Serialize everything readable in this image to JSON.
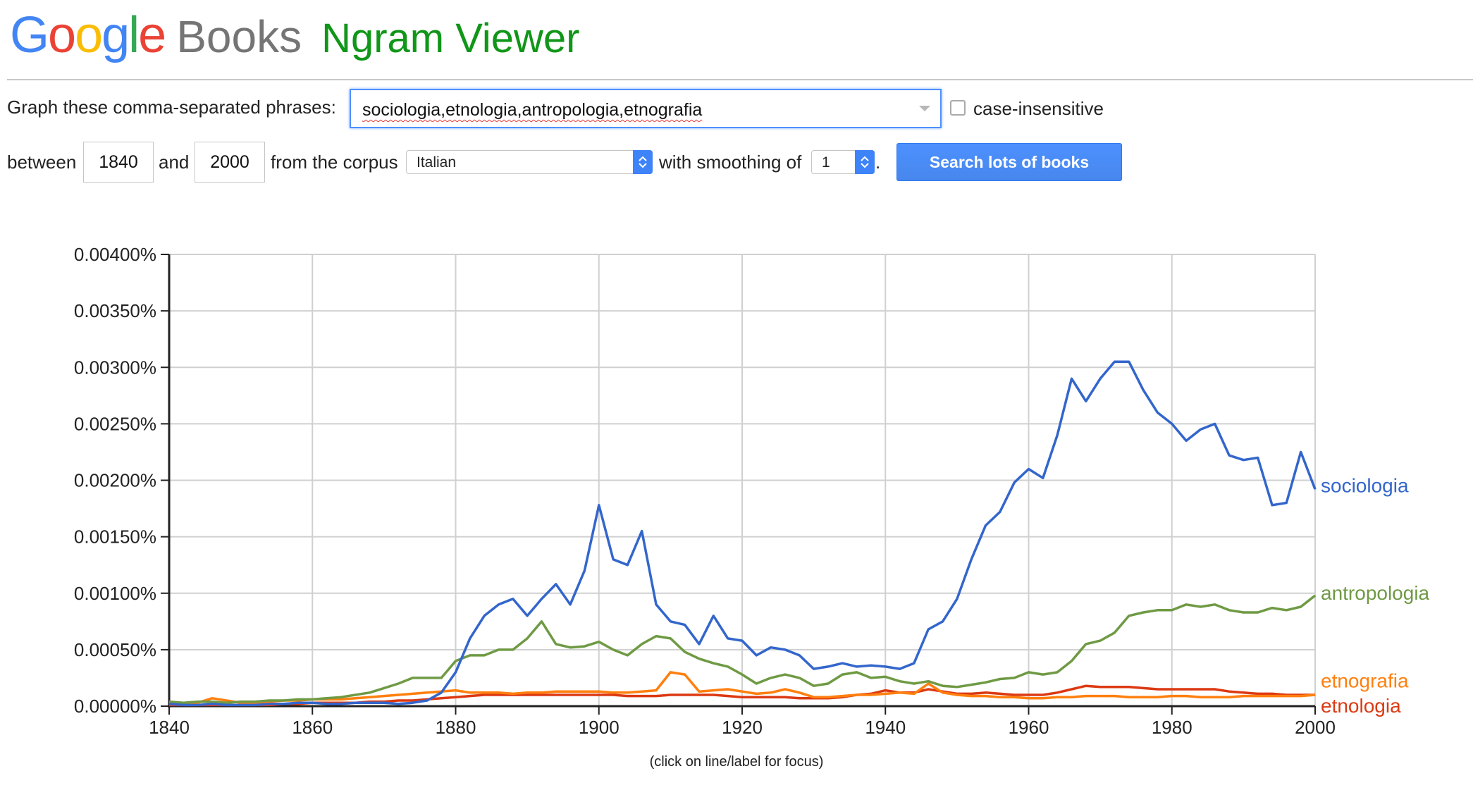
{
  "header": {
    "logo_letters": [
      {
        "ch": "G",
        "color": "#4285f4"
      },
      {
        "ch": "o",
        "color": "#ea4335"
      },
      {
        "ch": "o",
        "color": "#fbbc05"
      },
      {
        "ch": "g",
        "color": "#4285f4"
      },
      {
        "ch": "l",
        "color": "#34a853"
      },
      {
        "ch": "e",
        "color": "#ea4335"
      }
    ],
    "books": "Books",
    "title": "Ngram Viewer"
  },
  "form": {
    "phrases_label": "Graph these comma-separated phrases:",
    "phrases_value": "sociologia,etnologia,antropologia,etnografia",
    "case_insensitive_label": "case-insensitive",
    "case_insensitive_checked": false,
    "between_label": "between",
    "start_year": "1840",
    "and_label": "and",
    "end_year": "2000",
    "corpus_label": "from the corpus",
    "corpus_value": "Italian",
    "smoothing_label": "with smoothing of",
    "smoothing_value": "1",
    "smoothing_suffix": ".",
    "search_button": "Search lots of books"
  },
  "chart_hint": "(click on line/label for focus)",
  "chart_data": {
    "type": "line",
    "x": [
      1840,
      1842,
      1844,
      1846,
      1848,
      1850,
      1852,
      1854,
      1856,
      1858,
      1860,
      1862,
      1864,
      1866,
      1868,
      1870,
      1872,
      1874,
      1876,
      1878,
      1880,
      1882,
      1884,
      1886,
      1888,
      1890,
      1892,
      1894,
      1896,
      1898,
      1900,
      1902,
      1904,
      1906,
      1908,
      1910,
      1912,
      1914,
      1916,
      1918,
      1920,
      1922,
      1924,
      1926,
      1928,
      1930,
      1932,
      1934,
      1936,
      1938,
      1940,
      1942,
      1944,
      1946,
      1948,
      1950,
      1952,
      1954,
      1956,
      1958,
      1960,
      1962,
      1964,
      1966,
      1968,
      1970,
      1972,
      1974,
      1976,
      1978,
      1980,
      1982,
      1984,
      1986,
      1988,
      1990,
      1992,
      1994,
      1996,
      1998,
      2000
    ],
    "xlim": [
      1840,
      2000
    ],
    "ylim": [
      0,
      0.004
    ],
    "x_ticks": [
      1840,
      1860,
      1880,
      1900,
      1920,
      1940,
      1960,
      1980,
      2000
    ],
    "y_ticks": [
      0,
      0.0005,
      0.001,
      0.0015,
      0.002,
      0.0025,
      0.003,
      0.0035,
      0.004
    ],
    "y_tick_labels": [
      "0.00000%",
      "0.00050%",
      "0.00100%",
      "0.00150%",
      "0.00200%",
      "0.00250%",
      "0.00300%",
      "0.00350%",
      "0.00400%"
    ],
    "grid": true,
    "series": [
      {
        "name": "sociologia",
        "color": "#3366cc",
        "label_y": 0.00195,
        "values": [
          2e-05,
          1e-05,
          1e-05,
          2e-05,
          1e-05,
          1e-05,
          1e-05,
          2e-05,
          2e-05,
          3e-05,
          3e-05,
          2e-05,
          2e-05,
          3e-05,
          3e-05,
          3e-05,
          2e-05,
          3e-05,
          5e-05,
          0.00012,
          0.0003,
          0.0006,
          0.0008,
          0.0009,
          0.00095,
          0.0008,
          0.00095,
          0.00108,
          0.0009,
          0.0012,
          0.00178,
          0.0013,
          0.00125,
          0.00155,
          0.0009,
          0.00075,
          0.00072,
          0.00055,
          0.0008,
          0.0006,
          0.00058,
          0.00045,
          0.00052,
          0.0005,
          0.00045,
          0.00033,
          0.00035,
          0.00038,
          0.00035,
          0.00036,
          0.00035,
          0.00033,
          0.00038,
          0.00068,
          0.00075,
          0.00095,
          0.0013,
          0.0016,
          0.00172,
          0.00198,
          0.0021,
          0.00202,
          0.0024,
          0.0029,
          0.0027,
          0.0029,
          0.00305,
          0.00305,
          0.0028,
          0.0026,
          0.0025,
          0.00235,
          0.00245,
          0.0025,
          0.00222,
          0.00218,
          0.0022,
          0.00178,
          0.0018,
          0.00225,
          0.00192
        ]
      },
      {
        "name": "antropologia",
        "color": "#6f9a44",
        "label_y": 0.001,
        "values": [
          4e-05,
          3e-05,
          4e-05,
          4e-05,
          3e-05,
          4e-05,
          4e-05,
          5e-05,
          5e-05,
          6e-05,
          6e-05,
          7e-05,
          8e-05,
          0.0001,
          0.00012,
          0.00016,
          0.0002,
          0.00025,
          0.00025,
          0.00025,
          0.0004,
          0.00045,
          0.00045,
          0.0005,
          0.0005,
          0.0006,
          0.00075,
          0.00055,
          0.00052,
          0.00053,
          0.00057,
          0.0005,
          0.00045,
          0.00055,
          0.00062,
          0.0006,
          0.00048,
          0.00042,
          0.00038,
          0.00035,
          0.00028,
          0.0002,
          0.00025,
          0.00028,
          0.00025,
          0.00018,
          0.0002,
          0.00028,
          0.0003,
          0.00025,
          0.00026,
          0.00022,
          0.0002,
          0.00022,
          0.00018,
          0.00017,
          0.00019,
          0.00021,
          0.00024,
          0.00025,
          0.0003,
          0.00028,
          0.0003,
          0.0004,
          0.00055,
          0.00058,
          0.00065,
          0.0008,
          0.00083,
          0.00085,
          0.00085,
          0.0009,
          0.00088,
          0.0009,
          0.00085,
          0.00083,
          0.00083,
          0.00087,
          0.00085,
          0.00088,
          0.00098
        ]
      },
      {
        "name": "etnografia",
        "color": "#ff7f0e",
        "label_y": 0.00022,
        "values": [
          2e-05,
          2e-05,
          3e-05,
          7e-05,
          5e-05,
          3e-05,
          3e-05,
          4e-05,
          5e-05,
          5e-05,
          6e-05,
          6e-05,
          6e-05,
          7e-05,
          8e-05,
          9e-05,
          0.0001,
          0.00011,
          0.00012,
          0.00013,
          0.00014,
          0.00012,
          0.00012,
          0.00012,
          0.00011,
          0.00012,
          0.00012,
          0.00013,
          0.00013,
          0.00013,
          0.00013,
          0.00012,
          0.00012,
          0.00013,
          0.00014,
          0.0003,
          0.00028,
          0.00013,
          0.00014,
          0.00015,
          0.00013,
          0.00011,
          0.00012,
          0.00015,
          0.00012,
          8e-05,
          8e-05,
          9e-05,
          0.0001,
          0.0001,
          0.00011,
          0.00012,
          0.00011,
          0.0002,
          0.00012,
          0.0001,
          9e-05,
          9e-05,
          8e-05,
          8e-05,
          7e-05,
          7e-05,
          8e-05,
          8e-05,
          9e-05,
          9e-05,
          9e-05,
          8e-05,
          8e-05,
          8e-05,
          9e-05,
          9e-05,
          8e-05,
          8e-05,
          8e-05,
          9e-05,
          9e-05,
          9e-05,
          9e-05,
          9e-05,
          0.0001
        ]
      },
      {
        "name": "etnologia",
        "color": "#dc3912",
        "label_y": 0.0,
        "values": [
          1e-05,
          1e-05,
          1e-05,
          1e-05,
          1e-05,
          1e-05,
          1e-05,
          1e-05,
          2e-05,
          2e-05,
          3e-05,
          3e-05,
          3e-05,
          3e-05,
          4e-05,
          4e-05,
          5e-05,
          5e-05,
          6e-05,
          7e-05,
          8e-05,
          9e-05,
          0.0001,
          0.0001,
          0.0001,
          0.0001,
          0.0001,
          0.0001,
          0.0001,
          0.0001,
          0.0001,
          0.0001,
          9e-05,
          9e-05,
          9e-05,
          0.0001,
          0.0001,
          0.0001,
          0.0001,
          9e-05,
          8e-05,
          8e-05,
          8e-05,
          8e-05,
          7e-05,
          7e-05,
          7e-05,
          8e-05,
          0.0001,
          0.00011,
          0.00014,
          0.00012,
          0.00012,
          0.00015,
          0.00013,
          0.00011,
          0.00011,
          0.00012,
          0.00011,
          0.0001,
          0.0001,
          0.0001,
          0.00012,
          0.00015,
          0.00018,
          0.00017,
          0.00017,
          0.00017,
          0.00016,
          0.00015,
          0.00015,
          0.00015,
          0.00015,
          0.00015,
          0.00013,
          0.00012,
          0.00011,
          0.00011,
          0.0001,
          0.0001,
          0.0001
        ]
      }
    ]
  }
}
